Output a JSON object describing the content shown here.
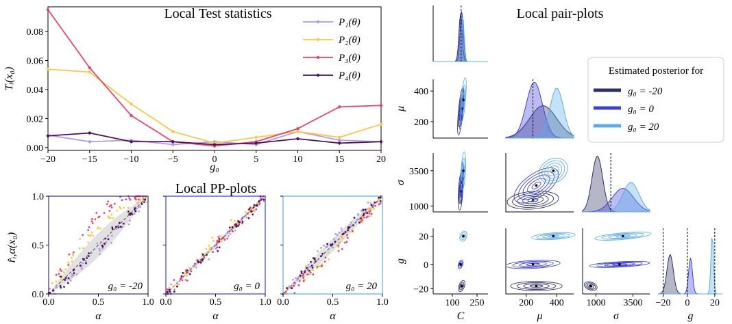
{
  "chart_data": [
    {
      "type": "line",
      "title": "Local Test statistics",
      "xlabel": "g₀",
      "ylabel": "Tᵢ(x₀)",
      "x": [
        -20,
        -15,
        -10,
        -5,
        0,
        5,
        10,
        15,
        20
      ],
      "xlim": [
        -20,
        20
      ],
      "ylim": [
        -0.002,
        0.097
      ],
      "xticks": [
        "−20",
        "−15",
        "−10",
        "−5",
        "0",
        "5",
        "10",
        "15",
        "20"
      ],
      "yticks": [
        "0.00",
        "0.02",
        "0.04",
        "0.06",
        "0.08"
      ],
      "ytick_values": [
        0,
        0.02,
        0.04,
        0.06,
        0.08
      ],
      "legend_position": "top-right",
      "series": [
        {
          "name": "P₁(θ)",
          "color": "#b497e7",
          "values": [
            0.0085,
            0.004,
            0.005,
            0.002,
            0.004,
            0.002,
            0.011,
            0.005,
            0.004
          ]
        },
        {
          "name": "P₂(θ)",
          "color": "#f9c846",
          "values": [
            0.054,
            0.052,
            0.03,
            0.011,
            0.003,
            0.007,
            0.011,
            0.007,
            0.016
          ]
        },
        {
          "name": "P₃(θ)",
          "color": "#e8436b",
          "values": [
            0.095,
            0.055,
            0.022,
            0.004,
            0.001,
            0.004,
            0.013,
            0.028,
            0.029
          ]
        },
        {
          "name": "P₄(θ)",
          "color": "#4b1259",
          "values": [
            0.008,
            0.01,
            0.004,
            0.004,
            0.002,
            0.003,
            0.006,
            0.003,
            0.004
          ]
        }
      ]
    },
    {
      "type": "scatter",
      "title": "Local PP-plots",
      "xlabel": "α",
      "ylabel": "r̂ᵢ,α(x₀)",
      "xlim": [
        0,
        1
      ],
      "ylim": [
        0,
        1
      ],
      "xticks": [
        "0.0",
        "0.5",
        "1.0"
      ],
      "yticks": [
        "0.0",
        "0.5",
        "1.0"
      ],
      "panels": [
        {
          "label": "g₀ = -20",
          "frame_color": "#2f3470"
        },
        {
          "label": "g₀ = 0",
          "frame_color": "#3a3fd4"
        },
        {
          "label": "g₀ = 20",
          "frame_color": "#55aee8"
        }
      ]
    },
    {
      "type": "scatter",
      "title": "Local pair-plots",
      "variables": [
        "C",
        "μ",
        "σ",
        "g"
      ],
      "xticks": {
        "C": [
          "100",
          "250"
        ],
        "μ": [
          "200",
          "400"
        ],
        "σ": [
          "1000",
          "3500"
        ],
        "g": [
          "−20",
          "0",
          "20"
        ]
      },
      "yticks": {
        "μ": [
          "200",
          "400"
        ],
        "σ": [
          "1000",
          "3500"
        ],
        "g": [
          "−20",
          "0",
          "20"
        ]
      },
      "legend_title": "Estimated posterior for",
      "legend_position": "top-right",
      "series": [
        {
          "name": "g₀ = -20",
          "color": "#2c3065"
        },
        {
          "name": "g₀ = 0",
          "color": "#3d40d8"
        },
        {
          "name": "g₀ = 20",
          "color": "#5aace8"
        }
      ]
    }
  ]
}
